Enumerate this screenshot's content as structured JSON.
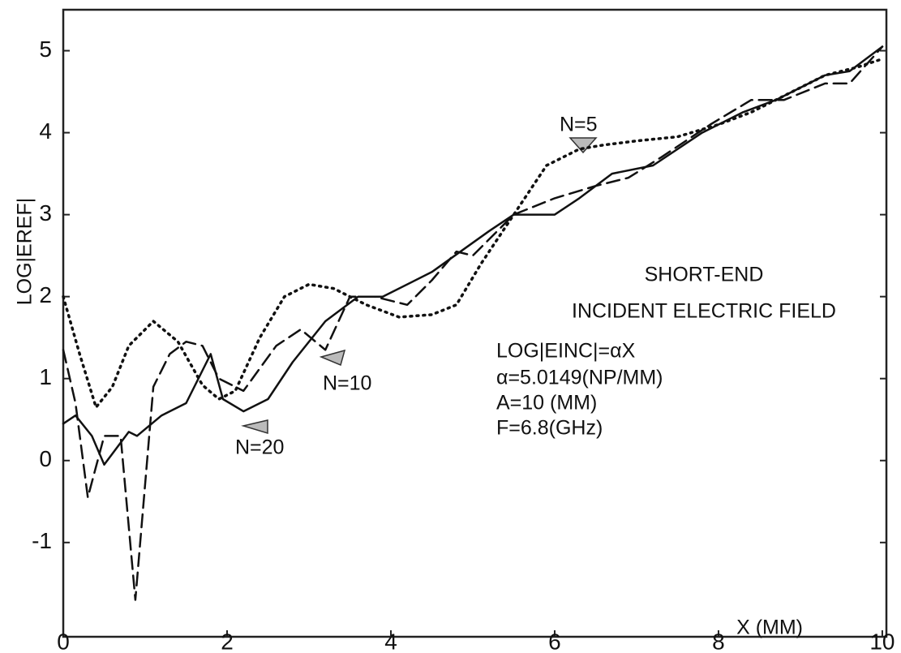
{
  "chart_data": {
    "type": "line",
    "x_label": "X (MM)",
    "y_label": "LOG|EREF|",
    "xlim": [
      0,
      10.05
    ],
    "ylim": [
      -2.15,
      5.5
    ],
    "xticks": [
      0,
      2,
      4,
      6,
      8,
      10
    ],
    "yticks": [
      -1,
      0,
      1,
      2,
      3,
      4,
      5
    ],
    "annotations": [
      "N=5",
      "N=10",
      "N=20",
      "SHORT-END",
      "INCIDENT ELECTRIC FIELD",
      "LOG|EINC|=αX",
      "α=5.0149(NP/MM)",
      "A=10 (MM)",
      "F=6.8(GHz)"
    ],
    "series": [
      {
        "name": "N=5",
        "color": "#111111",
        "style": "dotted",
        "x": [
          0,
          0.2,
          0.4,
          0.6,
          0.8,
          1.1,
          1.4,
          1.7,
          1.9,
          2.1,
          2.4,
          2.7,
          3.0,
          3.3,
          3.7,
          4.1,
          4.5,
          4.8,
          5.1,
          5.5,
          5.9,
          6.3,
          6.6,
          7.0,
          7.5,
          8.0,
          8.4,
          8.7,
          9.0,
          9.3,
          9.7,
          10
        ],
        "values": [
          2.0,
          1.3,
          0.65,
          0.9,
          1.4,
          1.7,
          1.45,
          0.92,
          0.75,
          0.85,
          1.5,
          2.0,
          2.15,
          2.1,
          1.9,
          1.75,
          1.78,
          1.9,
          2.4,
          3.0,
          3.6,
          3.8,
          3.85,
          3.9,
          3.95,
          4.1,
          4.25,
          4.4,
          4.55,
          4.7,
          4.8,
          4.9
        ]
      },
      {
        "name": "N=10",
        "color": "#111111",
        "style": "dashed",
        "x": [
          0,
          0.15,
          0.3,
          0.5,
          0.7,
          0.88,
          1.1,
          1.3,
          1.5,
          1.7,
          1.9,
          2.2,
          2.6,
          2.9,
          3.2,
          3.5,
          3.8,
          4.2,
          4.5,
          4.8,
          5.0,
          5.5,
          6.0,
          6.5,
          6.9,
          7.3,
          7.9,
          8.4,
          8.8,
          9.3,
          9.6,
          10
        ],
        "values": [
          1.35,
          0.7,
          -0.45,
          0.3,
          0.3,
          -1.7,
          0.9,
          1.3,
          1.45,
          1.4,
          1.0,
          0.85,
          1.4,
          1.6,
          1.35,
          2.0,
          2.0,
          1.9,
          2.2,
          2.55,
          2.5,
          3.0,
          3.2,
          3.35,
          3.45,
          3.7,
          4.1,
          4.4,
          4.4,
          4.6,
          4.6,
          5.05
        ]
      },
      {
        "name": "N=20",
        "color": "#111111",
        "style": "solid",
        "x": [
          0,
          0.15,
          0.35,
          0.5,
          0.65,
          0.8,
          0.9,
          1.2,
          1.5,
          1.8,
          1.95,
          2.2,
          2.5,
          2.8,
          3.2,
          3.6,
          3.9,
          4.5,
          5.2,
          5.5,
          6.0,
          6.3,
          6.7,
          7.2,
          7.8,
          8.3,
          8.7,
          9.3,
          9.6,
          10
        ],
        "values": [
          0.45,
          0.55,
          0.3,
          -0.05,
          0.15,
          0.35,
          0.3,
          0.55,
          0.7,
          1.3,
          0.75,
          0.6,
          0.75,
          1.2,
          1.7,
          2.0,
          2.0,
          2.3,
          2.8,
          3.0,
          3.0,
          3.2,
          3.5,
          3.6,
          4.0,
          4.25,
          4.4,
          4.7,
          4.75,
          5.05
        ]
      }
    ]
  }
}
